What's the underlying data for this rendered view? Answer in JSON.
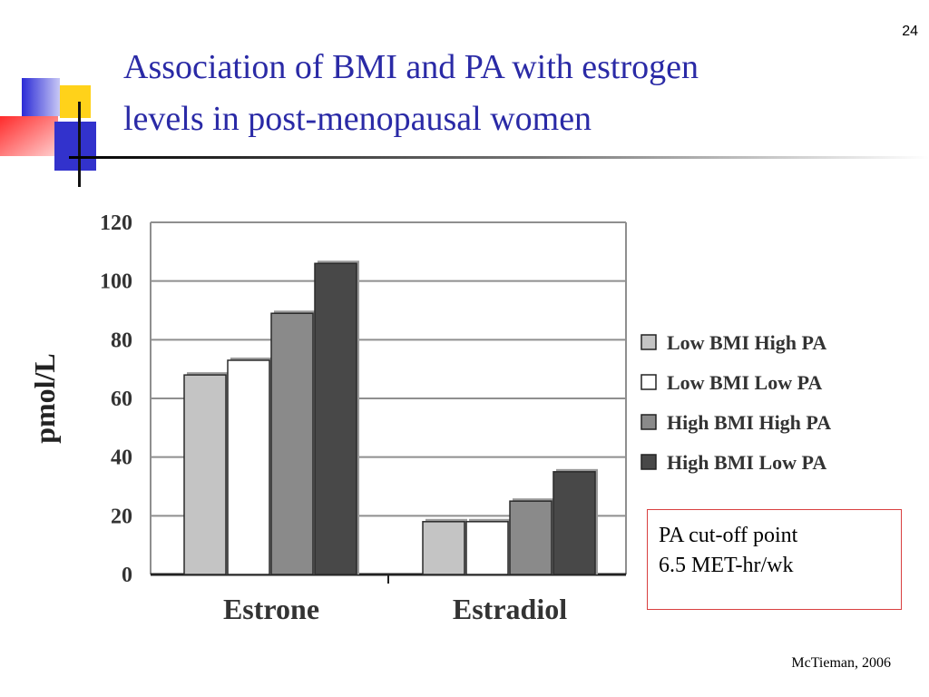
{
  "slide": {
    "number": "24",
    "title_line1": "Association of BMI and PA with estrogen",
    "title_line2": "levels in post-menopausal women",
    "note_line1": "PA cut-off point",
    "note_line2": "6.5 MET-hr/wk",
    "citation": "McTieman, 2006"
  },
  "chart_data": {
    "type": "bar",
    "title": "",
    "xlabel": "",
    "ylabel": "pmol/L",
    "ylim": [
      0,
      120
    ],
    "yticks": [
      "0",
      "20",
      "40",
      "60",
      "80",
      "100",
      "120"
    ],
    "categories": [
      "Estrone",
      "Estradiol"
    ],
    "series": [
      {
        "name": "Low BMI High PA",
        "color": "#c4c4c4",
        "values": [
          68,
          18
        ]
      },
      {
        "name": "Low BMI Low PA",
        "color": "#ffffff",
        "values": [
          73,
          18
        ]
      },
      {
        "name": "High BMI High PA",
        "color": "#8a8a8a",
        "values": [
          89,
          25
        ]
      },
      {
        "name": "High BMI Low PA",
        "color": "#484848",
        "values": [
          106,
          35
        ]
      }
    ],
    "grid": true,
    "legend_position": "right"
  },
  "colors": {
    "title": "#2a2aa6",
    "note_border": "#d94040"
  }
}
